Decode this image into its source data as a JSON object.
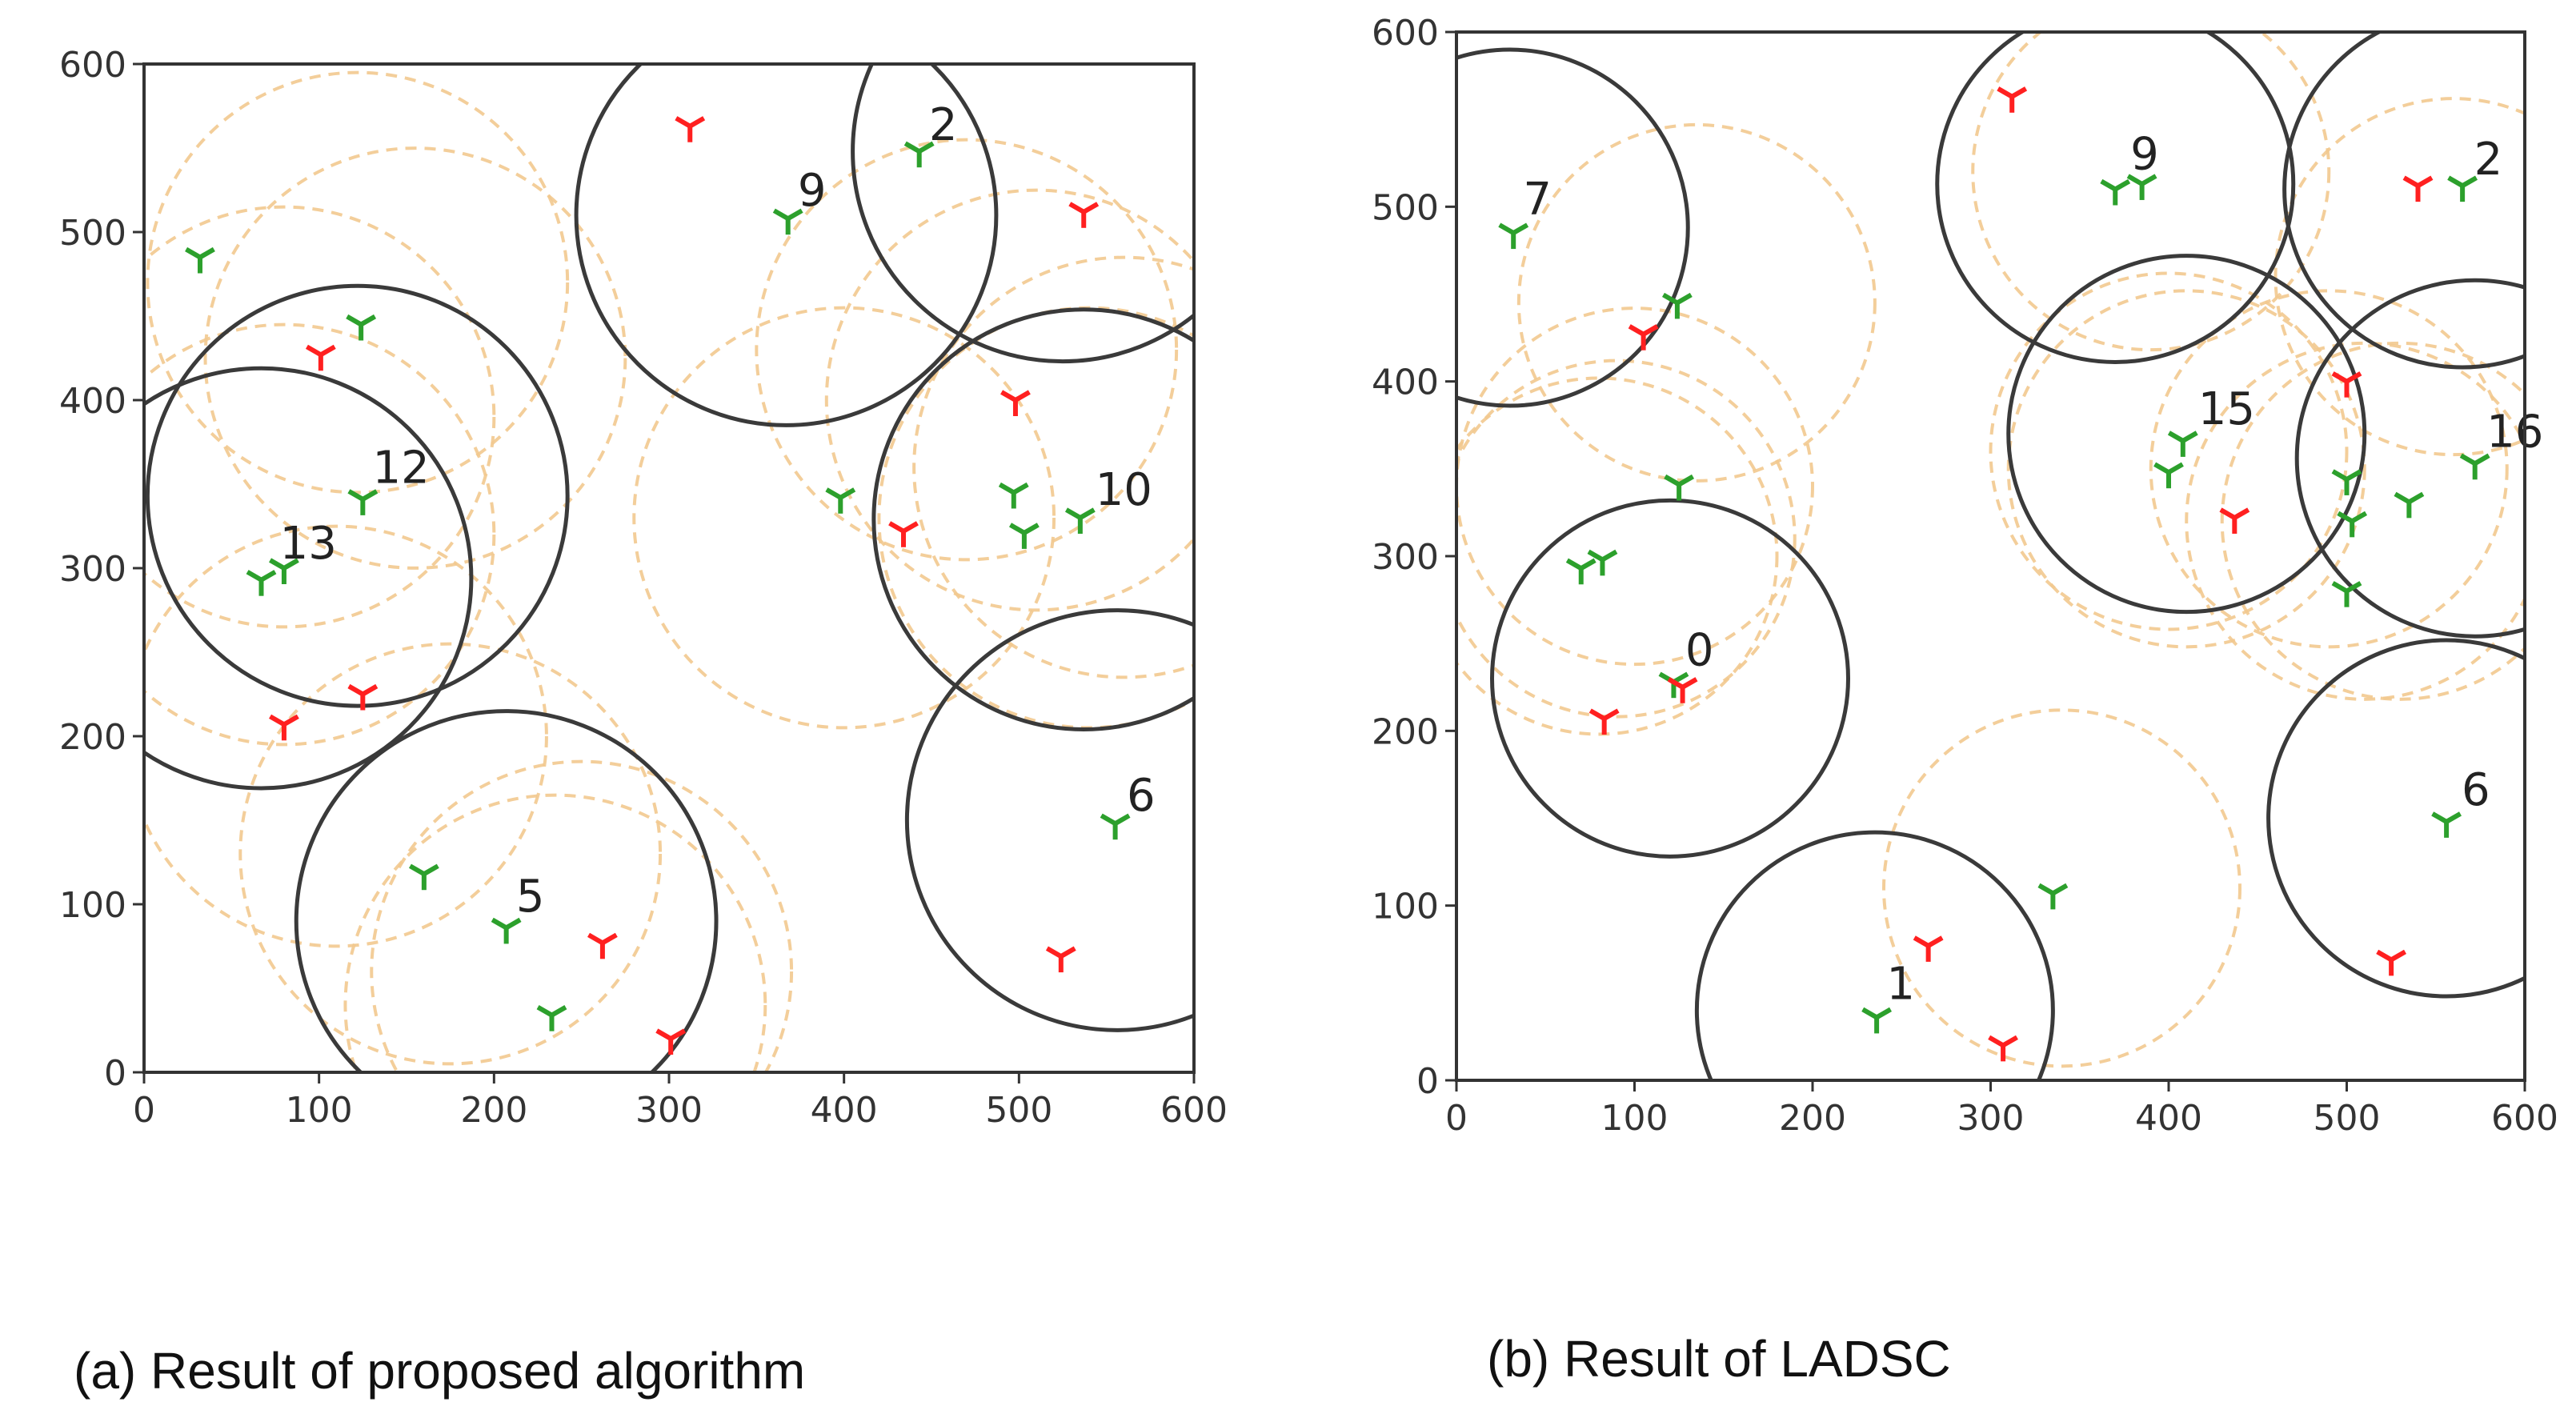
{
  "colors": {
    "background": "#ffffff",
    "axis": "#333333",
    "active_circle": "#3a3a3a",
    "inactive_circle": "#f2c98f",
    "green_node": "#2ca02c",
    "red_node": "#ff2020"
  },
  "captions": {
    "a": "(a)   Result of proposed algorithm",
    "b": "(b) Result of LADSC"
  },
  "chart_data": [
    {
      "id": "a",
      "type": "scatter",
      "title": "",
      "xlabel": "",
      "ylabel": "",
      "xlim": [
        0,
        600
      ],
      "ylim": [
        0,
        600
      ],
      "xticks": [
        0,
        100,
        200,
        300,
        400,
        500,
        600
      ],
      "yticks": [
        0,
        100,
        200,
        300,
        400,
        500,
        600
      ],
      "radius": 120,
      "active_sensors": [
        {
          "id": "2",
          "x": 525,
          "y": 548
        },
        {
          "id": "9",
          "x": 367,
          "y": 510
        },
        {
          "id": "12",
          "x": 122,
          "y": 343
        },
        {
          "id": "13",
          "x": 67,
          "y": 294
        },
        {
          "id": "10",
          "x": 537,
          "y": 329
        },
        {
          "id": "6",
          "x": 556,
          "y": 150
        },
        {
          "id": "5",
          "x": 207,
          "y": 90
        }
      ],
      "labels": [
        {
          "text": "2",
          "x": 444,
          "y": 549
        },
        {
          "text": "9",
          "x": 369,
          "y": 510
        },
        {
          "text": "12",
          "x": 126,
          "y": 345
        },
        {
          "text": "13",
          "x": 73,
          "y": 300
        },
        {
          "text": "10",
          "x": 539,
          "y": 332
        },
        {
          "text": "6",
          "x": 557,
          "y": 150
        },
        {
          "text": "5",
          "x": 208,
          "y": 90
        }
      ],
      "inactive_circles": [
        {
          "x": 122,
          "y": 470
        },
        {
          "x": 80,
          "y": 390
        },
        {
          "x": 155,
          "y": 425
        },
        {
          "x": 80,
          "y": 320
        },
        {
          "x": 470,
          "y": 430
        },
        {
          "x": 510,
          "y": 400
        },
        {
          "x": 400,
          "y": 330
        },
        {
          "x": 560,
          "y": 360
        },
        {
          "x": 540,
          "y": 330
        },
        {
          "x": 110,
          "y": 200
        },
        {
          "x": 175,
          "y": 130
        },
        {
          "x": 235,
          "y": 40
        },
        {
          "x": 250,
          "y": 60
        }
      ],
      "green_nodes": [
        {
          "x": 32,
          "y": 485
        },
        {
          "x": 124,
          "y": 445
        },
        {
          "x": 125,
          "y": 341
        },
        {
          "x": 67,
          "y": 293
        },
        {
          "x": 80,
          "y": 300
        },
        {
          "x": 368,
          "y": 508
        },
        {
          "x": 443,
          "y": 548
        },
        {
          "x": 398,
          "y": 342
        },
        {
          "x": 497,
          "y": 345
        },
        {
          "x": 503,
          "y": 321
        },
        {
          "x": 535,
          "y": 330
        },
        {
          "x": 555,
          "y": 148
        },
        {
          "x": 160,
          "y": 118
        },
        {
          "x": 207,
          "y": 86
        },
        {
          "x": 233,
          "y": 34
        }
      ],
      "red_nodes": [
        {
          "x": 312,
          "y": 563
        },
        {
          "x": 537,
          "y": 512
        },
        {
          "x": 101,
          "y": 427
        },
        {
          "x": 498,
          "y": 400
        },
        {
          "x": 434,
          "y": 322
        },
        {
          "x": 125,
          "y": 225
        },
        {
          "x": 80,
          "y": 207
        },
        {
          "x": 262,
          "y": 77
        },
        {
          "x": 524,
          "y": 69
        },
        {
          "x": 301,
          "y": 20
        }
      ]
    },
    {
      "id": "b",
      "type": "scatter",
      "title": "",
      "xlabel": "",
      "ylabel": "",
      "xlim": [
        0,
        600
      ],
      "ylim": [
        0,
        600
      ],
      "xticks": [
        0,
        100,
        200,
        300,
        400,
        500,
        600
      ],
      "yticks": [
        0,
        100,
        200,
        300,
        400,
        500,
        600
      ],
      "radius": 100,
      "active_sensors": [
        {
          "id": "7",
          "x": 30,
          "y": 488
        },
        {
          "id": "9",
          "x": 370,
          "y": 513
        },
        {
          "id": "2",
          "x": 565,
          "y": 510
        },
        {
          "id": "15",
          "x": 410,
          "y": 370
        },
        {
          "id": "16",
          "x": 572,
          "y": 356
        },
        {
          "id": "0",
          "x": 120,
          "y": 230
        },
        {
          "id": "6",
          "x": 556,
          "y": 150
        },
        {
          "id": "1",
          "x": 235,
          "y": 40
        }
      ],
      "labels": [
        {
          "text": "7",
          "x": 33,
          "y": 490
        },
        {
          "text": "9",
          "x": 374,
          "y": 516
        },
        {
          "text": "2",
          "x": 567,
          "y": 513
        },
        {
          "text": "15",
          "x": 412,
          "y": 370
        },
        {
          "text": "16",
          "x": 574,
          "y": 357
        },
        {
          "text": "0",
          "x": 124,
          "y": 232
        },
        {
          "text": "6",
          "x": 560,
          "y": 152
        },
        {
          "text": "1",
          "x": 237,
          "y": 41
        }
      ],
      "inactive_circles": [
        {
          "x": 135,
          "y": 445
        },
        {
          "x": 100,
          "y": 340
        },
        {
          "x": 80,
          "y": 300
        },
        {
          "x": 90,
          "y": 310
        },
        {
          "x": 400,
          "y": 360
        },
        {
          "x": 410,
          "y": 350
        },
        {
          "x": 490,
          "y": 350
        },
        {
          "x": 510,
          "y": 320
        },
        {
          "x": 530,
          "y": 320
        },
        {
          "x": 340,
          "y": 110
        },
        {
          "x": 390,
          "y": 520
        },
        {
          "x": 560,
          "y": 460
        }
      ],
      "green_nodes": [
        {
          "x": 32,
          "y": 485
        },
        {
          "x": 124,
          "y": 445
        },
        {
          "x": 125,
          "y": 341
        },
        {
          "x": 70,
          "y": 293
        },
        {
          "x": 82,
          "y": 298
        },
        {
          "x": 122,
          "y": 228
        },
        {
          "x": 370,
          "y": 510
        },
        {
          "x": 385,
          "y": 513
        },
        {
          "x": 565,
          "y": 512
        },
        {
          "x": 408,
          "y": 366
        },
        {
          "x": 400,
          "y": 348
        },
        {
          "x": 500,
          "y": 344
        },
        {
          "x": 503,
          "y": 320
        },
        {
          "x": 535,
          "y": 331
        },
        {
          "x": 572,
          "y": 353
        },
        {
          "x": 500,
          "y": 280
        },
        {
          "x": 556,
          "y": 148
        },
        {
          "x": 335,
          "y": 107
        },
        {
          "x": 236,
          "y": 36
        }
      ],
      "red_nodes": [
        {
          "x": 312,
          "y": 563
        },
        {
          "x": 540,
          "y": 512
        },
        {
          "x": 105,
          "y": 427
        },
        {
          "x": 500,
          "y": 400
        },
        {
          "x": 437,
          "y": 322
        },
        {
          "x": 127,
          "y": 225
        },
        {
          "x": 83,
          "y": 207
        },
        {
          "x": 265,
          "y": 77
        },
        {
          "x": 525,
          "y": 69
        },
        {
          "x": 307,
          "y": 20
        }
      ]
    }
  ]
}
